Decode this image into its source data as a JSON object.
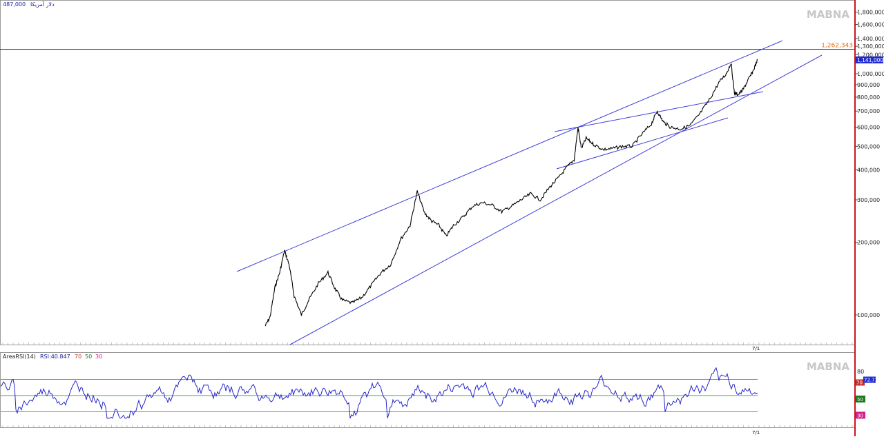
{
  "header": {
    "price_text": "487,000",
    "title_text": "دلار آمریکا"
  },
  "watermark": "MABNA",
  "colors": {
    "price_line": "#000000",
    "trend_lines": "#3c3cdc",
    "rsi_line": "#2626c8",
    "rsi_overbought": "#c03030",
    "rsi_mid": "#1c7a1c",
    "rsi_oversold": "#d01f8a",
    "resistance_label": "#e07020",
    "current_label_bg": "#1f2ad0",
    "right_border": "#c8141e"
  },
  "chart_data": [
    {
      "type": "line",
      "scale": "log",
      "ylim": [
        88000,
        2000000
      ],
      "y_ticks": [
        "1,800,000",
        "1,600,000",
        "1,400,000",
        "1,300,000",
        "1,200,000",
        "1,000,000",
        "900,000",
        "800,000",
        "700,000",
        "600,000",
        "500,000",
        "400,000",
        "300,000",
        "200,000",
        "100,000"
      ],
      "y_tick_values": [
        1800000,
        1600000,
        1400000,
        1300000,
        1200000,
        1000000,
        900000,
        800000,
        700000,
        600000,
        500000,
        400000,
        300000,
        200000,
        100000
      ],
      "x_label": "7/1",
      "horizontal_line": {
        "value": 1262343,
        "label": "1,262,343"
      },
      "current_value": {
        "value": 1141000,
        "label": "1,141,000"
      },
      "price_path": [
        [
          0.0,
          90000
        ],
        [
          0.01,
          98000
        ],
        [
          0.02,
          130000
        ],
        [
          0.03,
          150000
        ],
        [
          0.04,
          185000
        ],
        [
          0.05,
          160000
        ],
        [
          0.06,
          120000
        ],
        [
          0.075,
          100000
        ],
        [
          0.09,
          115000
        ],
        [
          0.11,
          135000
        ],
        [
          0.13,
          150000
        ],
        [
          0.145,
          128000
        ],
        [
          0.16,
          115000
        ],
        [
          0.18,
          112000
        ],
        [
          0.2,
          118000
        ],
        [
          0.22,
          133000
        ],
        [
          0.24,
          150000
        ],
        [
          0.26,
          162000
        ],
        [
          0.28,
          205000
        ],
        [
          0.3,
          235000
        ],
        [
          0.315,
          325000
        ],
        [
          0.33,
          265000
        ],
        [
          0.345,
          245000
        ],
        [
          0.36,
          235000
        ],
        [
          0.375,
          212000
        ],
        [
          0.39,
          235000
        ],
        [
          0.41,
          255000
        ],
        [
          0.43,
          283000
        ],
        [
          0.45,
          292000
        ],
        [
          0.47,
          285000
        ],
        [
          0.49,
          268000
        ],
        [
          0.51,
          282000
        ],
        [
          0.53,
          300000
        ],
        [
          0.55,
          318000
        ],
        [
          0.57,
          300000
        ],
        [
          0.59,
          340000
        ],
        [
          0.61,
          375000
        ],
        [
          0.625,
          410000
        ],
        [
          0.64,
          440000
        ],
        [
          0.648,
          600000
        ],
        [
          0.655,
          490000
        ],
        [
          0.665,
          540000
        ],
        [
          0.68,
          510000
        ],
        [
          0.7,
          485000
        ],
        [
          0.72,
          490000
        ],
        [
          0.74,
          500000
        ],
        [
          0.76,
          500000
        ],
        [
          0.78,
          560000
        ],
        [
          0.8,
          620000
        ],
        [
          0.812,
          700000
        ],
        [
          0.825,
          630000
        ],
        [
          0.84,
          600000
        ],
        [
          0.86,
          590000
        ],
        [
          0.88,
          610000
        ],
        [
          0.9,
          680000
        ],
        [
          0.92,
          780000
        ],
        [
          0.94,
          920000
        ],
        [
          0.955,
          1000000
        ],
        [
          0.965,
          1110000
        ],
        [
          0.972,
          830000
        ],
        [
          0.98,
          820000
        ],
        [
          0.99,
          860000
        ],
        [
          1.0,
          940000
        ],
        [
          1.01,
          1020000
        ],
        [
          1.02,
          1141000
        ]
      ]
    },
    {
      "type": "area",
      "title": "AreaRSI(14)",
      "readout": "RSI:40.847",
      "levels": [
        70,
        50,
        30
      ],
      "level_labels": [
        "70",
        "50",
        "30"
      ],
      "ylim": [
        20,
        90
      ],
      "y_ticks": [
        "80"
      ],
      "y_tick_values": [
        80
      ],
      "current_label": "72.73",
      "x_label": "7/1"
    }
  ]
}
